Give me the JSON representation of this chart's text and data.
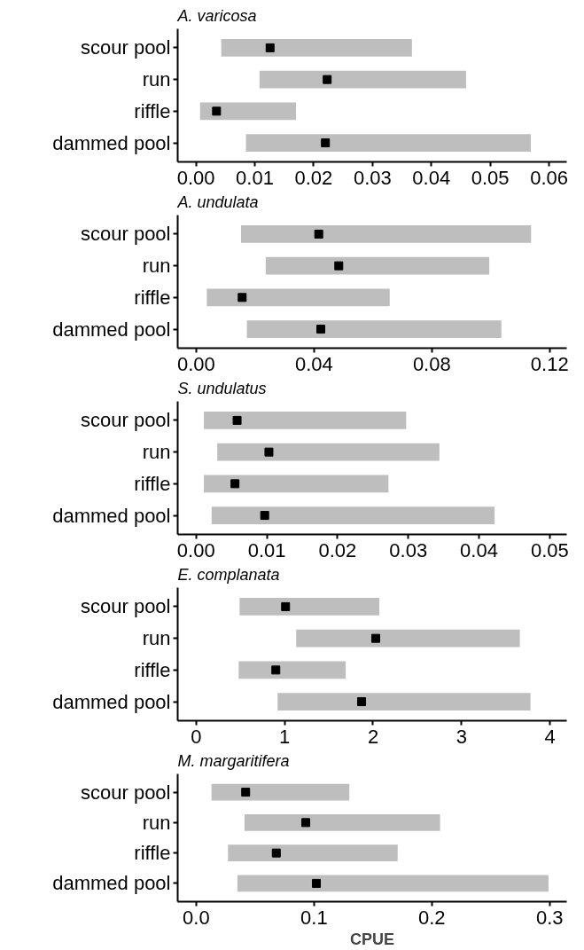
{
  "chart_data": [
    {
      "type": "bar",
      "title": "A. varicosa",
      "orientation": "horizontal",
      "categories": [
        "scour pool",
        "run",
        "riffle",
        "dammed pool"
      ],
      "xlim": [
        -0.0031,
        0.063
      ],
      "xticks": [
        {
          "value": 0,
          "label": "0.00"
        },
        {
          "value": 0.01,
          "label": "0.01"
        },
        {
          "value": 0.02,
          "label": "0.02"
        },
        {
          "value": 0.03,
          "label": "0.03"
        },
        {
          "value": 0.04,
          "label": "0.04"
        },
        {
          "value": 0.05,
          "label": "0.05"
        },
        {
          "value": 0.06,
          "label": "0.06"
        }
      ],
      "series": [
        {
          "color": "#bebebe",
          "base": [
            0.0043,
            0.0108,
            0.0007,
            0.0085
          ],
          "values": [
            0.0324,
            0.0351,
            0.0163,
            0.0484
          ]
        },
        {
          "type": "scatter",
          "color": "#000000",
          "marker": "square",
          "values": [
            0.0126,
            0.0223,
            0.0035,
            0.022
          ]
        }
      ]
    },
    {
      "type": "bar",
      "title": "A. undulata",
      "orientation": "horizontal",
      "categories": [
        "scour pool",
        "run",
        "riffle",
        "dammed pool"
      ],
      "xlim": [
        -0.0063,
        0.1258
      ],
      "xticks": [
        {
          "value": 0,
          "label": "0.00"
        },
        {
          "value": 0.04,
          "label": "0.04"
        },
        {
          "value": 0.08,
          "label": "0.08"
        },
        {
          "value": 0.12,
          "label": "0.12"
        }
      ],
      "series": [
        {
          "color": "#bebebe",
          "base": [
            0.0152,
            0.0236,
            0.0036,
            0.0172
          ],
          "values": [
            0.0985,
            0.0759,
            0.0621,
            0.0864
          ]
        },
        {
          "type": "scatter",
          "color": "#000000",
          "marker": "square",
          "values": [
            0.0416,
            0.0484,
            0.0156,
            0.0423
          ]
        }
      ]
    },
    {
      "type": "bar",
      "title": "S. undulatus",
      "orientation": "horizontal",
      "categories": [
        "scour pool",
        "run",
        "riffle",
        "dammed pool"
      ],
      "xlim": [
        -0.0026,
        0.0524
      ],
      "xticks": [
        {
          "value": 0,
          "label": "0.00"
        },
        {
          "value": 0.01,
          "label": "0.01"
        },
        {
          "value": 0.02,
          "label": "0.02"
        },
        {
          "value": 0.03,
          "label": "0.03"
        },
        {
          "value": 0.04,
          "label": "0.04"
        },
        {
          "value": 0.05,
          "label": "0.05"
        }
      ],
      "series": [
        {
          "color": "#bebebe",
          "base": [
            0.0011,
            0.003,
            0.0011,
            0.0022
          ],
          "values": [
            0.0286,
            0.0314,
            0.0261,
            0.04
          ]
        },
        {
          "type": "scatter",
          "color": "#000000",
          "marker": "square",
          "values": [
            0.0058,
            0.0103,
            0.0055,
            0.0097
          ]
        }
      ]
    },
    {
      "type": "bar",
      "title": "E. complanata",
      "orientation": "horizontal",
      "categories": [
        "scour pool",
        "run",
        "riffle",
        "dammed pool"
      ],
      "xlim": [
        -0.21,
        4.19
      ],
      "xticks": [
        0,
        1,
        2,
        3,
        4
      ],
      "series": [
        {
          "color": "#bebebe",
          "base": [
            0.49,
            1.13,
            0.48,
            0.92
          ],
          "values": [
            1.58,
            2.53,
            1.21,
            2.86
          ]
        },
        {
          "type": "scatter",
          "color": "#000000",
          "marker": "square",
          "values": [
            1.01,
            2.03,
            0.9,
            1.87
          ]
        }
      ]
    },
    {
      "type": "bar",
      "title": "M. margaritifera",
      "xlabel": "CPUE",
      "orientation": "horizontal",
      "categories": [
        "scour pool",
        "run",
        "riffle",
        "dammed pool"
      ],
      "xlim": [
        -0.0157,
        0.3145
      ],
      "xticks": [
        {
          "value": 0,
          "label": "0.0"
        },
        0.1,
        0.2,
        0.3
      ],
      "series": [
        {
          "color": "#bebebe",
          "base": [
            0.013,
            0.041,
            0.027,
            0.035
          ],
          "values": [
            0.117,
            0.166,
            0.144,
            0.264
          ]
        },
        {
          "type": "scatter",
          "color": "#000000",
          "marker": "square",
          "values": [
            0.042,
            0.093,
            0.068,
            0.102
          ]
        }
      ]
    }
  ]
}
